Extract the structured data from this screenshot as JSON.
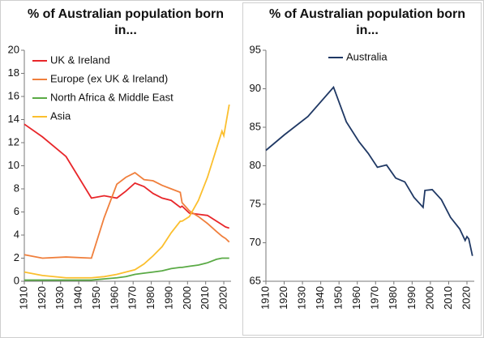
{
  "chart_data": [
    {
      "type": "line",
      "title": "% of Australian population born in...",
      "x": [
        1910,
        1920,
        1933,
        1947,
        1954,
        1961,
        1966,
        1971,
        1976,
        1981,
        1986,
        1991,
        1996,
        1997,
        2001,
        2006,
        2011,
        2016,
        2019,
        2020,
        2021,
        2023
      ],
      "xlim": [
        1910,
        2024
      ],
      "xticks": [
        1910,
        1920,
        1930,
        1940,
        1950,
        1960,
        1970,
        1980,
        1990,
        2000,
        2010,
        2020
      ],
      "ylim": [
        0,
        20
      ],
      "yticks": [
        0,
        2,
        4,
        6,
        8,
        10,
        12,
        14,
        16,
        18,
        20
      ],
      "legend": "top-left",
      "series": [
        {
          "name": "UK & Ireland",
          "color": "#e8262a",
          "values": [
            13.6,
            12.5,
            10.8,
            7.2,
            7.4,
            7.2,
            7.8,
            8.5,
            8.2,
            7.6,
            7.2,
            7.0,
            6.4,
            6.5,
            5.9,
            5.8,
            5.7,
            5.2,
            4.9,
            4.8,
            4.7,
            4.6
          ]
        },
        {
          "name": "Europe (ex UK & Ireland)",
          "color": "#f07f3c",
          "values": [
            2.3,
            2.0,
            2.1,
            2.0,
            5.5,
            8.4,
            9.0,
            9.4,
            8.8,
            8.7,
            8.3,
            8.0,
            7.7,
            6.8,
            6.1,
            5.6,
            5.0,
            4.3,
            3.9,
            3.8,
            3.7,
            3.4
          ]
        },
        {
          "name": "North Africa & Middle East",
          "color": "#5aaa45",
          "values": [
            0.1,
            0.1,
            0.1,
            0.1,
            0.2,
            0.3,
            0.4,
            0.6,
            0.7,
            0.8,
            0.9,
            1.1,
            1.2,
            1.2,
            1.3,
            1.4,
            1.6,
            1.9,
            2.0,
            2.0,
            2.0,
            2.0
          ]
        },
        {
          "name": "Asia",
          "color": "#fbbf2e",
          "values": [
            0.8,
            0.5,
            0.3,
            0.3,
            0.4,
            0.6,
            0.8,
            1.0,
            1.5,
            2.2,
            3.0,
            4.2,
            5.2,
            5.2,
            5.6,
            7.0,
            9.0,
            11.5,
            13.0,
            12.6,
            13.5,
            15.3
          ]
        }
      ]
    },
    {
      "type": "line",
      "title": "% of Australian population born in...",
      "x": [
        1910,
        1920,
        1933,
        1947,
        1954,
        1961,
        1966,
        1971,
        1976,
        1981,
        1986,
        1991,
        1996,
        1997,
        2001,
        2006,
        2011,
        2016,
        2019,
        2020,
        2021,
        2023
      ],
      "xlim": [
        1910,
        2024
      ],
      "xticks": [
        1910,
        1920,
        1930,
        1940,
        1950,
        1960,
        1970,
        1980,
        1990,
        2000,
        2010,
        2020
      ],
      "ylim": [
        65,
        95
      ],
      "yticks": [
        65,
        70,
        75,
        80,
        85,
        90,
        95
      ],
      "legend": "top-center",
      "series": [
        {
          "name": "Australia",
          "color": "#1f3864",
          "values": [
            82.0,
            84.0,
            86.4,
            90.2,
            85.7,
            83.1,
            81.6,
            79.8,
            80.1,
            78.4,
            77.9,
            75.9,
            74.6,
            76.8,
            76.9,
            75.6,
            73.3,
            71.8,
            70.3,
            70.8,
            70.5,
            68.3
          ]
        }
      ]
    }
  ]
}
